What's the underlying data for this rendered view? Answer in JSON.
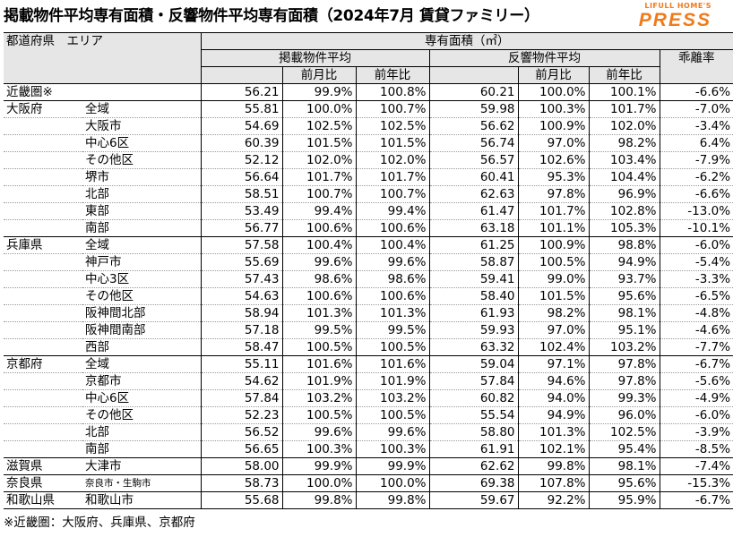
{
  "title": "掲載物件平均専有面積・反響物件平均専有面積（2024年7月 賃貸ファミリー）",
  "logo": {
    "line1": "LIFULL HOME'S",
    "line2": "PRESS"
  },
  "header": {
    "pref_area": "都道府県　エリア",
    "area_size": "専有面積（㎡）",
    "listed_avg": "掲載物件平均",
    "response_avg": "反響物件平均",
    "mom": "前月比",
    "yoy": "前年比",
    "divergence": "乖離率"
  },
  "rows": [
    {
      "pref": "近畿圏※",
      "area": "",
      "indent": 0,
      "la": "56.21",
      "lm": "99.9%",
      "ly": "100.8%",
      "ra": "60.21",
      "rm": "100.0%",
      "ry": "100.1%",
      "dv": "-6.6%",
      "group_start": true,
      "group_end": true
    },
    {
      "pref": "大阪府",
      "area": "全域",
      "indent": 0,
      "la": "55.81",
      "lm": "100.0%",
      "ly": "100.7%",
      "ra": "59.98",
      "rm": "100.3%",
      "ry": "101.7%",
      "dv": "-7.0%",
      "group_start": true
    },
    {
      "pref": "",
      "area": "大阪市",
      "indent": 1,
      "la": "54.69",
      "lm": "102.5%",
      "ly": "102.5%",
      "ra": "56.62",
      "rm": "100.9%",
      "ry": "102.0%",
      "dv": "-3.4%"
    },
    {
      "pref": "",
      "area": "中心6区",
      "indent": 2,
      "la": "60.39",
      "lm": "101.5%",
      "ly": "101.5%",
      "ra": "56.74",
      "rm": "97.0%",
      "ry": "98.2%",
      "dv": "6.4%"
    },
    {
      "pref": "",
      "area": "その他区",
      "indent": 2,
      "la": "52.12",
      "lm": "102.0%",
      "ly": "102.0%",
      "ra": "56.57",
      "rm": "102.6%",
      "ry": "103.4%",
      "dv": "-7.9%"
    },
    {
      "pref": "",
      "area": "堺市",
      "indent": 1,
      "la": "56.64",
      "lm": "101.7%",
      "ly": "101.7%",
      "ra": "60.41",
      "rm": "95.3%",
      "ry": "104.4%",
      "dv": "-6.2%"
    },
    {
      "pref": "",
      "area": "北部",
      "indent": 1,
      "la": "58.51",
      "lm": "100.7%",
      "ly": "100.7%",
      "ra": "62.63",
      "rm": "97.8%",
      "ry": "96.9%",
      "dv": "-6.6%"
    },
    {
      "pref": "",
      "area": "東部",
      "indent": 1,
      "la": "53.49",
      "lm": "99.4%",
      "ly": "99.4%",
      "ra": "61.47",
      "rm": "101.7%",
      "ry": "102.8%",
      "dv": "-13.0%"
    },
    {
      "pref": "",
      "area": "南部",
      "indent": 1,
      "la": "56.77",
      "lm": "100.6%",
      "ly": "100.6%",
      "ra": "63.18",
      "rm": "101.1%",
      "ry": "105.3%",
      "dv": "-10.1%",
      "group_end": true
    },
    {
      "pref": "兵庫県",
      "area": "全域",
      "indent": 0,
      "la": "57.58",
      "lm": "100.4%",
      "ly": "100.4%",
      "ra": "61.25",
      "rm": "100.9%",
      "ry": "98.8%",
      "dv": "-6.0%",
      "group_start": true
    },
    {
      "pref": "",
      "area": "神戸市",
      "indent": 1,
      "la": "55.69",
      "lm": "99.6%",
      "ly": "99.6%",
      "ra": "58.87",
      "rm": "100.5%",
      "ry": "94.9%",
      "dv": "-5.4%"
    },
    {
      "pref": "",
      "area": "中心3区",
      "indent": 2,
      "la": "57.43",
      "lm": "98.6%",
      "ly": "98.6%",
      "ra": "59.41",
      "rm": "99.0%",
      "ry": "93.7%",
      "dv": "-3.3%"
    },
    {
      "pref": "",
      "area": "その他区",
      "indent": 2,
      "la": "54.63",
      "lm": "100.6%",
      "ly": "100.6%",
      "ra": "58.40",
      "rm": "101.5%",
      "ry": "95.6%",
      "dv": "-6.5%"
    },
    {
      "pref": "",
      "area": "阪神間北部",
      "indent": 1,
      "la": "58.94",
      "lm": "101.3%",
      "ly": "101.3%",
      "ra": "61.93",
      "rm": "98.2%",
      "ry": "98.1%",
      "dv": "-4.8%"
    },
    {
      "pref": "",
      "area": "阪神間南部",
      "indent": 1,
      "la": "57.18",
      "lm": "99.5%",
      "ly": "99.5%",
      "ra": "59.93",
      "rm": "97.0%",
      "ry": "95.1%",
      "dv": "-4.6%"
    },
    {
      "pref": "",
      "area": "西部",
      "indent": 1,
      "la": "58.47",
      "lm": "100.5%",
      "ly": "100.5%",
      "ra": "63.32",
      "rm": "102.4%",
      "ry": "103.2%",
      "dv": "-7.7%",
      "group_end": true
    },
    {
      "pref": "京都府",
      "area": "全域",
      "indent": 0,
      "la": "55.11",
      "lm": "101.6%",
      "ly": "101.6%",
      "ra": "59.04",
      "rm": "97.1%",
      "ry": "97.8%",
      "dv": "-6.7%",
      "group_start": true
    },
    {
      "pref": "",
      "area": "京都市",
      "indent": 1,
      "la": "54.62",
      "lm": "101.9%",
      "ly": "101.9%",
      "ra": "57.84",
      "rm": "94.6%",
      "ry": "97.8%",
      "dv": "-5.6%"
    },
    {
      "pref": "",
      "area": "中心6区",
      "indent": 2,
      "la": "57.84",
      "lm": "103.2%",
      "ly": "103.2%",
      "ra": "60.82",
      "rm": "94.0%",
      "ry": "99.3%",
      "dv": "-4.9%"
    },
    {
      "pref": "",
      "area": "その他区",
      "indent": 2,
      "la": "52.23",
      "lm": "100.5%",
      "ly": "100.5%",
      "ra": "55.54",
      "rm": "94.9%",
      "ry": "96.0%",
      "dv": "-6.0%"
    },
    {
      "pref": "",
      "area": "北部",
      "indent": 1,
      "la": "56.52",
      "lm": "99.6%",
      "ly": "99.6%",
      "ra": "58.80",
      "rm": "101.3%",
      "ry": "102.5%",
      "dv": "-3.9%"
    },
    {
      "pref": "",
      "area": "南部",
      "indent": 1,
      "la": "56.65",
      "lm": "100.3%",
      "ly": "100.3%",
      "ra": "61.91",
      "rm": "102.1%",
      "ry": "95.4%",
      "dv": "-8.5%",
      "group_end": true
    },
    {
      "pref": "滋賀県",
      "area": "大津市",
      "indent": 1,
      "la": "58.00",
      "lm": "99.9%",
      "ly": "99.9%",
      "ra": "62.62",
      "rm": "99.8%",
      "ry": "98.1%",
      "dv": "-7.4%",
      "group_start": true,
      "group_end": true
    },
    {
      "pref": "奈良県",
      "area": "奈良市・生駒市",
      "indent": 1,
      "small": true,
      "la": "58.73",
      "lm": "100.0%",
      "ly": "100.0%",
      "ra": "69.38",
      "rm": "107.8%",
      "ry": "95.6%",
      "dv": "-15.3%",
      "group_start": true,
      "group_end": true
    },
    {
      "pref": "和歌山県",
      "area": "和歌山市",
      "indent": 1,
      "la": "55.68",
      "lm": "99.8%",
      "ly": "99.8%",
      "ra": "59.67",
      "rm": "92.2%",
      "ry": "95.9%",
      "dv": "-6.7%",
      "group_start": true,
      "group_end": true
    }
  ],
  "footnote": "※近畿圏：大阪府、兵庫県、京都府"
}
